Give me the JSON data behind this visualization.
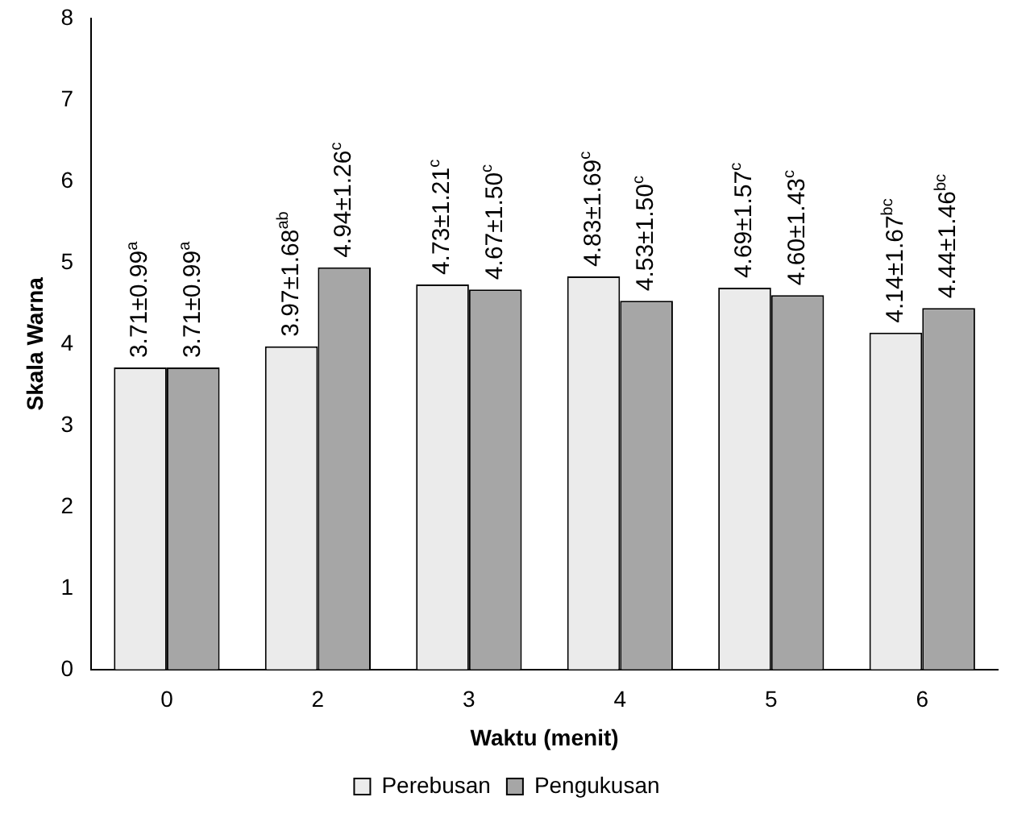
{
  "chart_data": {
    "type": "bar",
    "xlabel": "Waktu (menit)",
    "ylabel": "Skala Warna",
    "categories": [
      "0",
      "2",
      "3",
      "4",
      "5",
      "6"
    ],
    "series": [
      {
        "name": "Perebusan",
        "color": "#ebebeb",
        "values": [
          3.71,
          3.97,
          4.73,
          4.83,
          4.69,
          4.14
        ],
        "value_labels": [
          "3.71±0.99$^{a}$",
          "3.97±1.68$^{ab}$",
          "4.73±1.21$^{c}$",
          "4.83±1.69$^{c}$",
          "4.69±1.57$^{c}$",
          "4.14±1.67$^{bc}$"
        ]
      },
      {
        "name": "Pengukusan",
        "color": "#a6a6a6",
        "values": [
          3.71,
          4.94,
          4.67,
          4.53,
          4.6,
          4.44
        ],
        "value_labels": [
          "3.71±0.99$^{a}$",
          "4.94±1.26$^{c}$",
          "4.67±1.50$^{c}$",
          "4.53±1.50$^{c}$",
          "4.60±1.43$^{c}$",
          "4.44±1.46$^{bc}$"
        ]
      }
    ],
    "ylim": [
      0,
      8
    ],
    "yticks": [
      0,
      1,
      2,
      3,
      4,
      5,
      6,
      7,
      8
    ],
    "grid": false,
    "legend": "bottom"
  }
}
